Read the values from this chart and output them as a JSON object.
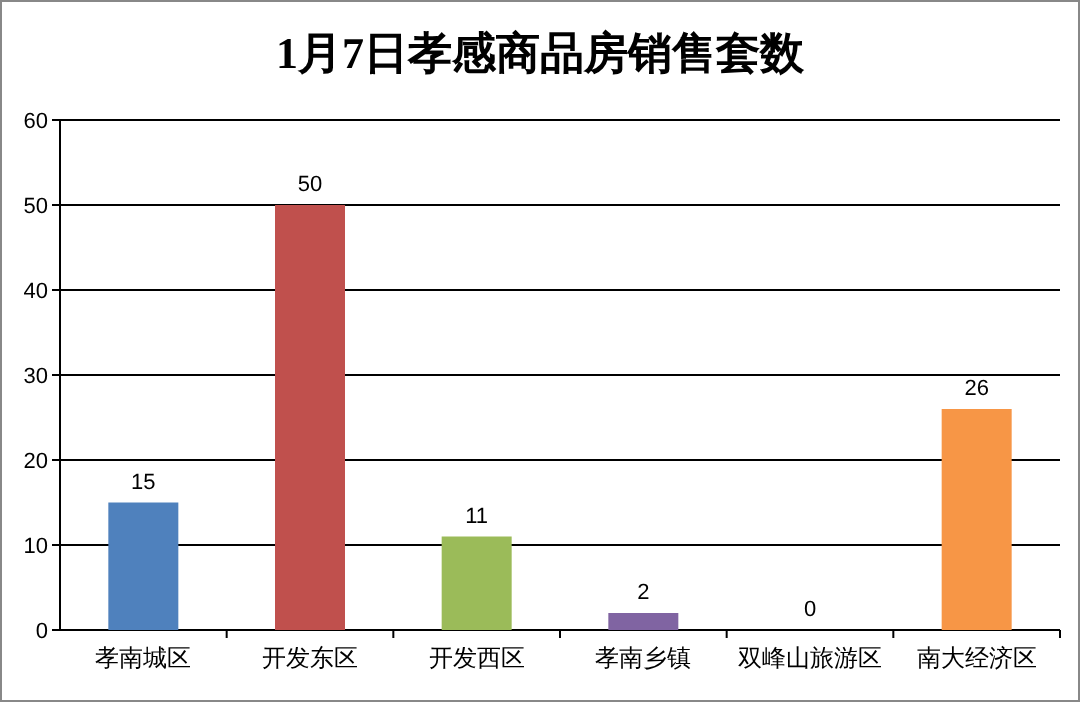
{
  "chart_data": {
    "type": "bar",
    "title": "1月7日孝感商品房销售套数",
    "categories": [
      "孝南城区",
      "开发东区",
      "开发西区",
      "孝南乡镇",
      "双峰山旅游区",
      "南大经济区"
    ],
    "values": [
      15,
      50,
      11,
      2,
      0,
      26
    ],
    "colors": [
      "#4f81bd",
      "#c0504d",
      "#9bbb59",
      "#8064a2",
      "#4bacc6",
      "#f79646"
    ],
    "ylim": [
      0,
      60
    ],
    "yticks": [
      0,
      10,
      20,
      30,
      40,
      50,
      60
    ],
    "grid": "y",
    "data_labels": true
  }
}
